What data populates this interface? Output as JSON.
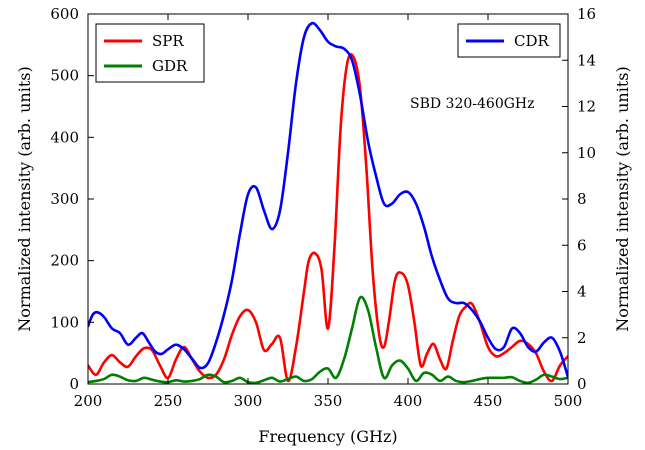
{
  "chart_data": {
    "type": "line",
    "xlabel": "Frequency (GHz)",
    "ylabel_left": "Normalized intensity (arb. units)",
    "ylabel_right": "Normalized intensity (arb. units)",
    "xlim": [
      200,
      500
    ],
    "ylim_left": [
      0,
      600
    ],
    "ylim_right": [
      0,
      16
    ],
    "xticks": [
      "200",
      "250",
      "300",
      "350",
      "400",
      "450",
      "500"
    ],
    "yticks_left": [
      "0",
      "100",
      "200",
      "300",
      "400",
      "500",
      "600"
    ],
    "yticks_right": [
      "0",
      "2",
      "4",
      "6",
      "8",
      "10",
      "12",
      "14",
      "16"
    ],
    "annotation": "SBD 320-460GHz",
    "grid": false,
    "legend_left": [
      "SPR",
      "GDR"
    ],
    "legend_right": [
      "CDR"
    ],
    "series": [
      {
        "name": "SPR",
        "axis": "left",
        "color": "#ff0000",
        "x": [
          200,
          205,
          210,
          215,
          220,
          225,
          230,
          235,
          240,
          245,
          250,
          255,
          260,
          265,
          270,
          275,
          280,
          285,
          290,
          295,
          300,
          305,
          310,
          315,
          320,
          325,
          330,
          335,
          338,
          342,
          346,
          350,
          354,
          358,
          362,
          366,
          370,
          374,
          378,
          382,
          385,
          388,
          392,
          396,
          400,
          404,
          408,
          412,
          416,
          420,
          424,
          428,
          432,
          436,
          440,
          445,
          450,
          455,
          460,
          465,
          470,
          475,
          480,
          485,
          490,
          495,
          500
        ],
        "y": [
          30,
          15,
          35,
          47,
          35,
          28,
          45,
          58,
          55,
          30,
          10,
          40,
          60,
          40,
          20,
          10,
          15,
          40,
          80,
          110,
          120,
          100,
          55,
          65,
          75,
          5,
          60,
          150,
          200,
          212,
          185,
          90,
          220,
          420,
          520,
          530,
          480,
          350,
          180,
          80,
          60,
          100,
          170,
          180,
          160,
          100,
          30,
          50,
          65,
          40,
          25,
          70,
          110,
          125,
          130,
          100,
          60,
          45,
          50,
          60,
          70,
          65,
          50,
          20,
          5,
          30,
          45
        ]
      },
      {
        "name": "GDR",
        "axis": "left",
        "color": "#008000",
        "x": [
          200,
          205,
          210,
          215,
          220,
          225,
          230,
          235,
          240,
          245,
          250,
          255,
          260,
          265,
          270,
          275,
          280,
          285,
          290,
          295,
          300,
          305,
          310,
          315,
          320,
          325,
          330,
          335,
          340,
          345,
          350,
          355,
          360,
          365,
          370,
          375,
          380,
          385,
          390,
          395,
          400,
          405,
          410,
          415,
          420,
          425,
          430,
          435,
          440,
          445,
          450,
          455,
          460,
          465,
          470,
          475,
          480,
          485,
          490,
          495,
          500
        ],
        "y": [
          3,
          5,
          8,
          15,
          12,
          6,
          5,
          10,
          7,
          4,
          3,
          6,
          4,
          5,
          8,
          15,
          12,
          3,
          5,
          10,
          3,
          2,
          6,
          10,
          4,
          8,
          12,
          5,
          8,
          20,
          25,
          10,
          40,
          90,
          140,
          120,
          60,
          10,
          30,
          38,
          25,
          5,
          18,
          15,
          5,
          12,
          5,
          3,
          5,
          8,
          10,
          10,
          10,
          11,
          5,
          2,
          7,
          15,
          12,
          8,
          10
        ]
      },
      {
        "name": "CDR",
        "axis": "right",
        "color": "#0000ff",
        "x": [
          200,
          203,
          206,
          210,
          215,
          220,
          225,
          230,
          234,
          238,
          242,
          246,
          250,
          255,
          260,
          265,
          270,
          275,
          280,
          285,
          290,
          295,
          300,
          305,
          310,
          315,
          320,
          325,
          330,
          335,
          340,
          345,
          350,
          355,
          360,
          365,
          370,
          375,
          380,
          385,
          390,
          395,
          400,
          405,
          410,
          415,
          420,
          425,
          430,
          435,
          440,
          445,
          450,
          455,
          460,
          465,
          470,
          475,
          480,
          485,
          490,
          495,
          500
        ],
        "y": [
          2.5,
          3.0,
          3.1,
          2.9,
          2.4,
          2.2,
          1.7,
          2.0,
          2.2,
          1.8,
          1.4,
          1.3,
          1.5,
          1.7,
          1.5,
          1.1,
          0.7,
          0.9,
          1.8,
          3.0,
          4.5,
          6.5,
          8.2,
          8.5,
          7.5,
          6.7,
          7.5,
          10.0,
          13.0,
          15.0,
          15.6,
          15.3,
          14.8,
          14.6,
          14.5,
          14.0,
          12.5,
          10.5,
          9.0,
          7.8,
          7.8,
          8.2,
          8.3,
          7.8,
          6.8,
          5.5,
          4.5,
          3.7,
          3.5,
          3.5,
          3.2,
          2.7,
          2.0,
          1.5,
          1.6,
          2.4,
          2.2,
          1.6,
          1.4,
          1.8,
          2.0,
          1.4,
          0.3
        ]
      }
    ]
  }
}
